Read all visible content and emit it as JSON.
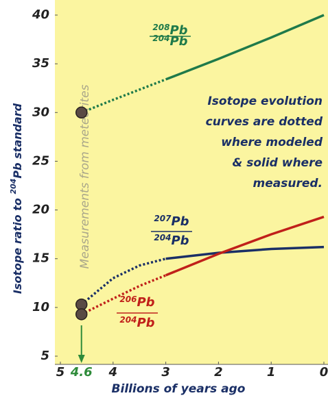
{
  "chart_data": {
    "type": "line",
    "x_label": "Billions of years ago",
    "y_label": {
      "before": "Isotope ratio to ",
      "mass": "204",
      "after": "Pb standard"
    },
    "vertical_note": "Measurements from meteorites",
    "annotation": [
      "Isotope evolution",
      "curves are dotted",
      "where modeled",
      "& solid where",
      "measured."
    ],
    "xlim": [
      5,
      0
    ],
    "xticks": [
      5,
      4,
      3,
      2,
      1,
      0
    ],
    "marked_x": 4.6,
    "marked_color": "#2e8b3a",
    "ylim": [
      5,
      40
    ],
    "yticks": [
      5,
      10,
      15,
      20,
      25,
      30,
      35,
      40
    ],
    "background": "#fbf5a0",
    "series": [
      {
        "label": {
          "top_mass": "208",
          "top_element": "Pb",
          "bottom_mass": "204",
          "bottom_element": "Pb"
        },
        "color": "#1f7a4a",
        "modeled": {
          "x": [
            4.6,
            4,
            3
          ],
          "values": [
            30,
            31.3,
            33.4
          ]
        },
        "measured": {
          "x": [
            3,
            2,
            1,
            0
          ],
          "values": [
            33.4,
            35.5,
            37.7,
            40
          ]
        }
      },
      {
        "label": {
          "top_mass": "207",
          "top_element": "Pb",
          "bottom_mass": "204",
          "bottom_element": "Pb"
        },
        "color": "#1a2f66",
        "modeled": {
          "x": [
            4.6,
            4,
            3.5,
            3
          ],
          "values": [
            10.3,
            13,
            14.3,
            15
          ]
        },
        "measured": {
          "x": [
            3,
            2,
            1,
            0
          ],
          "values": [
            15,
            15.6,
            16,
            16.2
          ]
        }
      },
      {
        "label": {
          "top_mass": "206",
          "top_element": "Pb",
          "bottom_mass": "204",
          "bottom_element": "Pb"
        },
        "color": "#c0201a",
        "modeled": {
          "x": [
            4.6,
            4,
            3.5,
            3
          ],
          "values": [
            9.3,
            10.9,
            12.2,
            13.3
          ]
        },
        "measured": {
          "x": [
            3,
            2,
            1,
            0
          ],
          "values": [
            13.3,
            15.5,
            17.5,
            19.3
          ]
        }
      }
    ]
  }
}
